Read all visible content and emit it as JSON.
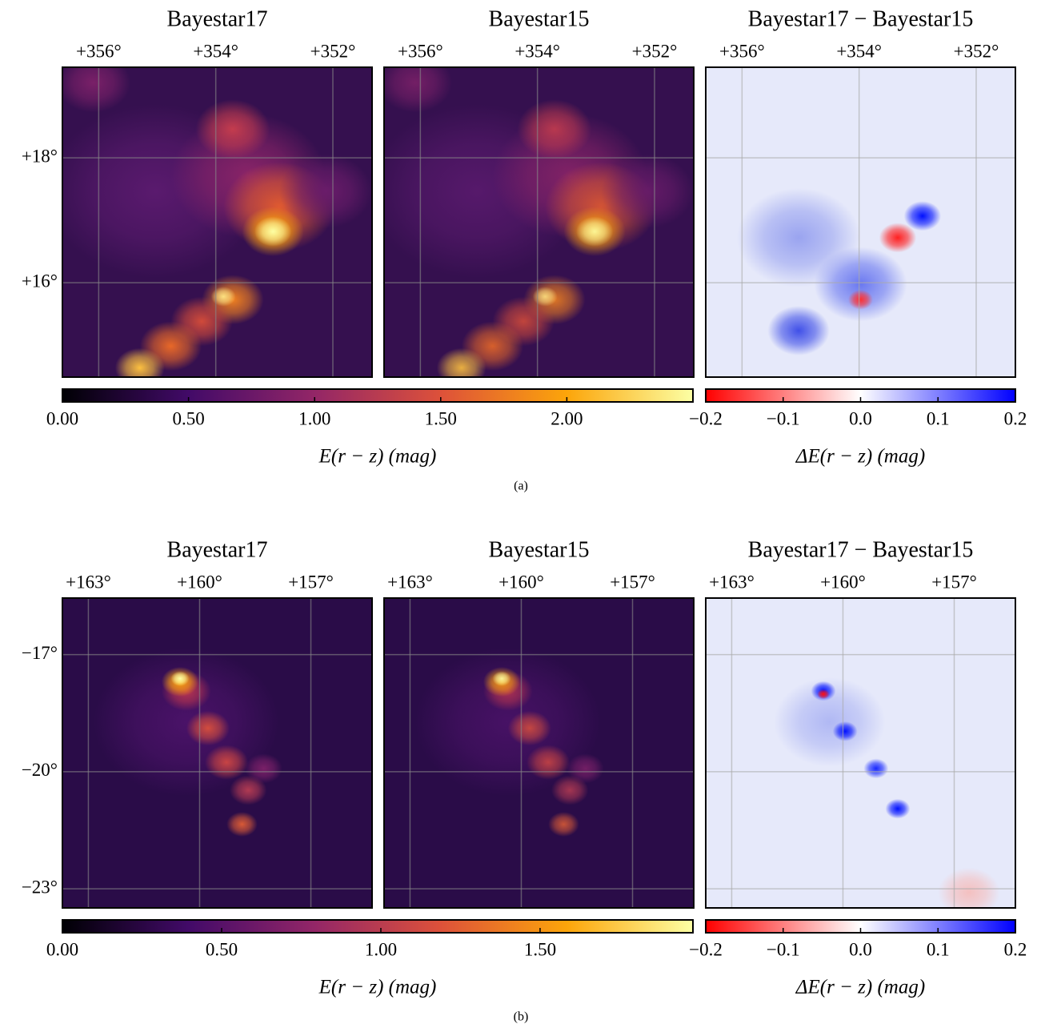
{
  "figures": [
    {
      "label": "(a)",
      "panels": [
        {
          "title": "Bayestar17"
        },
        {
          "title": "Bayestar15"
        },
        {
          "title": "Bayestar17 − Bayestar15"
        }
      ],
      "xlim": [
        356.62,
        351.33
      ],
      "xticks": [
        {
          "value": 356,
          "label": "+356°"
        },
        {
          "value": 354,
          "label": "+354°"
        },
        {
          "value": 352,
          "label": "+352°"
        }
      ],
      "ylim": [
        14.49,
        19.45
      ],
      "yticks": [
        {
          "value": 16,
          "label": "+16°"
        },
        {
          "value": 18,
          "label": "+18°"
        }
      ],
      "colorbar": {
        "label": "E(r − z) (mag)",
        "lim": [
          0,
          2.5
        ],
        "ticks": [
          {
            "value": 0,
            "label": "0.00"
          },
          {
            "value": 0.5,
            "label": "0.50"
          },
          {
            "value": 1,
            "label": "1.00"
          },
          {
            "value": 1.5,
            "label": "1.50"
          },
          {
            "value": 2,
            "label": "2.00"
          }
        ],
        "colors": [
          "#000004",
          "#420a68",
          "#932667",
          "#dd513a",
          "#fca50a",
          "#fcffa4"
        ]
      },
      "diff_colorbar": {
        "label": "ΔE(r − z) (mag)",
        "lim": [
          -0.2,
          0.2
        ],
        "ticks": [
          {
            "value": -0.2,
            "label": "−0.2"
          },
          {
            "value": -0.1,
            "label": "−0.1"
          },
          {
            "value": 0,
            "label": "0.0"
          },
          {
            "value": 0.1,
            "label": "0.1"
          },
          {
            "value": 0.2,
            "label": "0.2"
          }
        ],
        "colors": [
          "#ff0000",
          "#ffffff",
          "#0000ff"
        ]
      }
    },
    {
      "label": "(b)",
      "panels": [
        {
          "title": "Bayestar17"
        },
        {
          "title": "Bayestar15"
        },
        {
          "title": "Bayestar17 − Bayestar15"
        }
      ],
      "xlim": [
        163.7,
        155.35
      ],
      "xticks": [
        {
          "value": 163,
          "label": "+163°"
        },
        {
          "value": 160,
          "label": "+160°"
        },
        {
          "value": 157,
          "label": "+157°"
        }
      ],
      "ylim": [
        -23.49,
        -15.55
      ],
      "yticks": [
        {
          "value": -23,
          "label": "−23°"
        },
        {
          "value": -20,
          "label": "−20°"
        },
        {
          "value": -17,
          "label": "−17°"
        }
      ],
      "colorbar": {
        "label": "E(r − z) (mag)",
        "lim": [
          0,
          1.98
        ],
        "ticks": [
          {
            "value": 0,
            "label": "0.00"
          },
          {
            "value": 0.5,
            "label": "0.50"
          },
          {
            "value": 1,
            "label": "1.00"
          },
          {
            "value": 1.5,
            "label": "1.50"
          }
        ],
        "colors": [
          "#000004",
          "#420a68",
          "#932667",
          "#dd513a",
          "#fca50a",
          "#fcffa4"
        ]
      },
      "diff_colorbar": {
        "label": "ΔE(r − z) (mag)",
        "lim": [
          -0.2,
          0.2
        ],
        "ticks": [
          {
            "value": -0.2,
            "label": "−0.2"
          },
          {
            "value": -0.1,
            "label": "−0.1"
          },
          {
            "value": 0,
            "label": "0.0"
          },
          {
            "value": 0.1,
            "label": "0.1"
          },
          {
            "value": 0.2,
            "label": "0.2"
          }
        ],
        "colors": [
          "#ff0000",
          "#ffffff",
          "#0000ff"
        ]
      }
    }
  ]
}
